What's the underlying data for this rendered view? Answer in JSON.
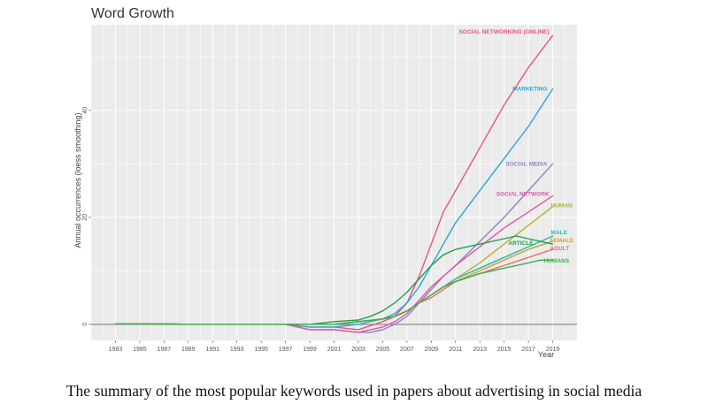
{
  "caption": "The summary of the most popular keywords used in papers about advertising in social media",
  "chart_data": {
    "type": "line",
    "title": "Word Growth",
    "xlabel": "Year",
    "ylabel": "Annual occurrences (loess smoothing)",
    "xlim": [
      1981,
      2021
    ],
    "ylim": [
      -3,
      56
    ],
    "x_ticks": [
      "1983",
      "1985",
      "1987",
      "1989",
      "1991",
      "1993",
      "1995",
      "1997",
      "1999",
      "2001",
      "2003",
      "2005",
      "2007",
      "2009",
      "2011",
      "2013",
      "2015",
      "2017",
      "2019"
    ],
    "y_ticks": [
      0,
      20,
      40
    ],
    "grid": true,
    "legend": "direct labels at line ends",
    "series": [
      {
        "name": "SOCIAL NETWORKING (ONLINE)",
        "color": "#e75480",
        "points": [
          [
            1997,
            0
          ],
          [
            1999,
            -0.5
          ],
          [
            2001,
            -0.5
          ],
          [
            2003,
            -1
          ],
          [
            2005,
            0.5
          ],
          [
            2006,
            1.5
          ],
          [
            2007,
            4
          ],
          [
            2008,
            9
          ],
          [
            2009,
            15
          ],
          [
            2010,
            21
          ],
          [
            2011,
            25
          ],
          [
            2013,
            33
          ],
          [
            2015,
            41
          ],
          [
            2017,
            48
          ],
          [
            2019,
            54
          ]
        ]
      },
      {
        "name": "MARKETING",
        "color": "#2aa7d4",
        "points": [
          [
            1997,
            0
          ],
          [
            1999,
            -0.5
          ],
          [
            2001,
            -0.5
          ],
          [
            2003,
            0
          ],
          [
            2005,
            1
          ],
          [
            2006,
            2
          ],
          [
            2007,
            4
          ],
          [
            2008,
            7
          ],
          [
            2009,
            11
          ],
          [
            2010,
            15
          ],
          [
            2011,
            19
          ],
          [
            2013,
            25
          ],
          [
            2015,
            31
          ],
          [
            2017,
            37
          ],
          [
            2019,
            44
          ]
        ]
      },
      {
        "name": "SOCIAL MEDIA",
        "color": "#8f82c4",
        "points": [
          [
            1997,
            0
          ],
          [
            1999,
            -1
          ],
          [
            2001,
            -1
          ],
          [
            2003,
            -1.5
          ],
          [
            2004,
            -1.5
          ],
          [
            2005,
            -1
          ],
          [
            2006,
            0
          ],
          [
            2007,
            1.5
          ],
          [
            2008,
            4
          ],
          [
            2009,
            6.5
          ],
          [
            2010,
            9
          ],
          [
            2011,
            11
          ],
          [
            2013,
            15.5
          ],
          [
            2015,
            20
          ],
          [
            2017,
            25
          ],
          [
            2019,
            30
          ]
        ]
      },
      {
        "name": "SOCIAL NETWORK",
        "color": "#d85aa5",
        "points": [
          [
            1997,
            0
          ],
          [
            1999,
            -1
          ],
          [
            2001,
            -1
          ],
          [
            2003,
            -1.5
          ],
          [
            2005,
            -0.5
          ],
          [
            2006,
            0.5
          ],
          [
            2007,
            2
          ],
          [
            2008,
            4.5
          ],
          [
            2009,
            7
          ],
          [
            2010,
            9
          ],
          [
            2011,
            11
          ],
          [
            2013,
            14.5
          ],
          [
            2015,
            18
          ],
          [
            2017,
            21
          ],
          [
            2019,
            24
          ]
        ]
      },
      {
        "name": "HUMAN",
        "color": "#b6b12a",
        "points": [
          [
            1997,
            0
          ],
          [
            1999,
            0
          ],
          [
            2001,
            0
          ],
          [
            2003,
            0.5
          ],
          [
            2005,
            1
          ],
          [
            2006,
            1.5
          ],
          [
            2007,
            2.5
          ],
          [
            2008,
            4
          ],
          [
            2009,
            5.5
          ],
          [
            2010,
            7
          ],
          [
            2011,
            8.5
          ],
          [
            2013,
            11.5
          ],
          [
            2015,
            15
          ],
          [
            2017,
            18.5
          ],
          [
            2019,
            22
          ]
        ]
      },
      {
        "name": "MALE",
        "color": "#2bb5a3",
        "points": [
          [
            1997,
            0
          ],
          [
            1999,
            0
          ],
          [
            2001,
            0
          ],
          [
            2003,
            0.5
          ],
          [
            2005,
            1
          ],
          [
            2006,
            1.5
          ],
          [
            2007,
            2.5
          ],
          [
            2008,
            4
          ],
          [
            2009,
            5.5
          ],
          [
            2010,
            7
          ],
          [
            2011,
            8.5
          ],
          [
            2013,
            10.5
          ],
          [
            2015,
            12.5
          ],
          [
            2017,
            14.5
          ],
          [
            2019,
            16.5
          ]
        ]
      },
      {
        "name": "FEMALE",
        "color": "#c9a13a",
        "points": [
          [
            1997,
            0
          ],
          [
            1999,
            0
          ],
          [
            2001,
            0
          ],
          [
            2003,
            0.5
          ],
          [
            2005,
            1
          ],
          [
            2006,
            1.5
          ],
          [
            2007,
            2.5
          ],
          [
            2008,
            4
          ],
          [
            2009,
            5.5
          ],
          [
            2010,
            7
          ],
          [
            2011,
            8
          ],
          [
            2013,
            10
          ],
          [
            2015,
            12
          ],
          [
            2017,
            14
          ],
          [
            2019,
            15.5
          ]
        ]
      },
      {
        "name": "ARTICLE",
        "color": "#1fa14b",
        "points": [
          [
            1997,
            0
          ],
          [
            1999,
            0
          ],
          [
            2001,
            0.5
          ],
          [
            2003,
            0.8
          ],
          [
            2004,
            1.5
          ],
          [
            2005,
            2.5
          ],
          [
            2006,
            4
          ],
          [
            2007,
            6
          ],
          [
            2008,
            8.5
          ],
          [
            2009,
            11
          ],
          [
            2010,
            13
          ],
          [
            2011,
            14
          ],
          [
            2013,
            15
          ],
          [
            2015,
            16
          ],
          [
            2016,
            16.5
          ],
          [
            2017,
            16
          ],
          [
            2018,
            15.5
          ],
          [
            2019,
            15
          ]
        ]
      },
      {
        "name": "ADULT",
        "color": "#e4716b",
        "points": [
          [
            1997,
            0
          ],
          [
            1999,
            0
          ],
          [
            2001,
            0
          ],
          [
            2003,
            0.5
          ],
          [
            2005,
            1
          ],
          [
            2006,
            1.5
          ],
          [
            2007,
            2.5
          ],
          [
            2008,
            4
          ],
          [
            2009,
            5
          ],
          [
            2010,
            6.5
          ],
          [
            2011,
            8
          ],
          [
            2013,
            9.5
          ],
          [
            2015,
            11
          ],
          [
            2017,
            12.5
          ],
          [
            2019,
            14
          ]
        ]
      },
      {
        "name": "HUMANS",
        "color": "#3fae49",
        "points": [
          [
            1997,
            0
          ],
          [
            1999,
            0
          ],
          [
            2001,
            0
          ],
          [
            2003,
            0.5
          ],
          [
            2005,
            1
          ],
          [
            2006,
            1.5
          ],
          [
            2007,
            2.5
          ],
          [
            2008,
            4
          ],
          [
            2009,
            5.5
          ],
          [
            2010,
            7
          ],
          [
            2011,
            8
          ],
          [
            2013,
            9.5
          ],
          [
            2015,
            10.5
          ],
          [
            2017,
            11.5
          ],
          [
            2018,
            12
          ],
          [
            2019,
            12
          ]
        ]
      }
    ]
  }
}
